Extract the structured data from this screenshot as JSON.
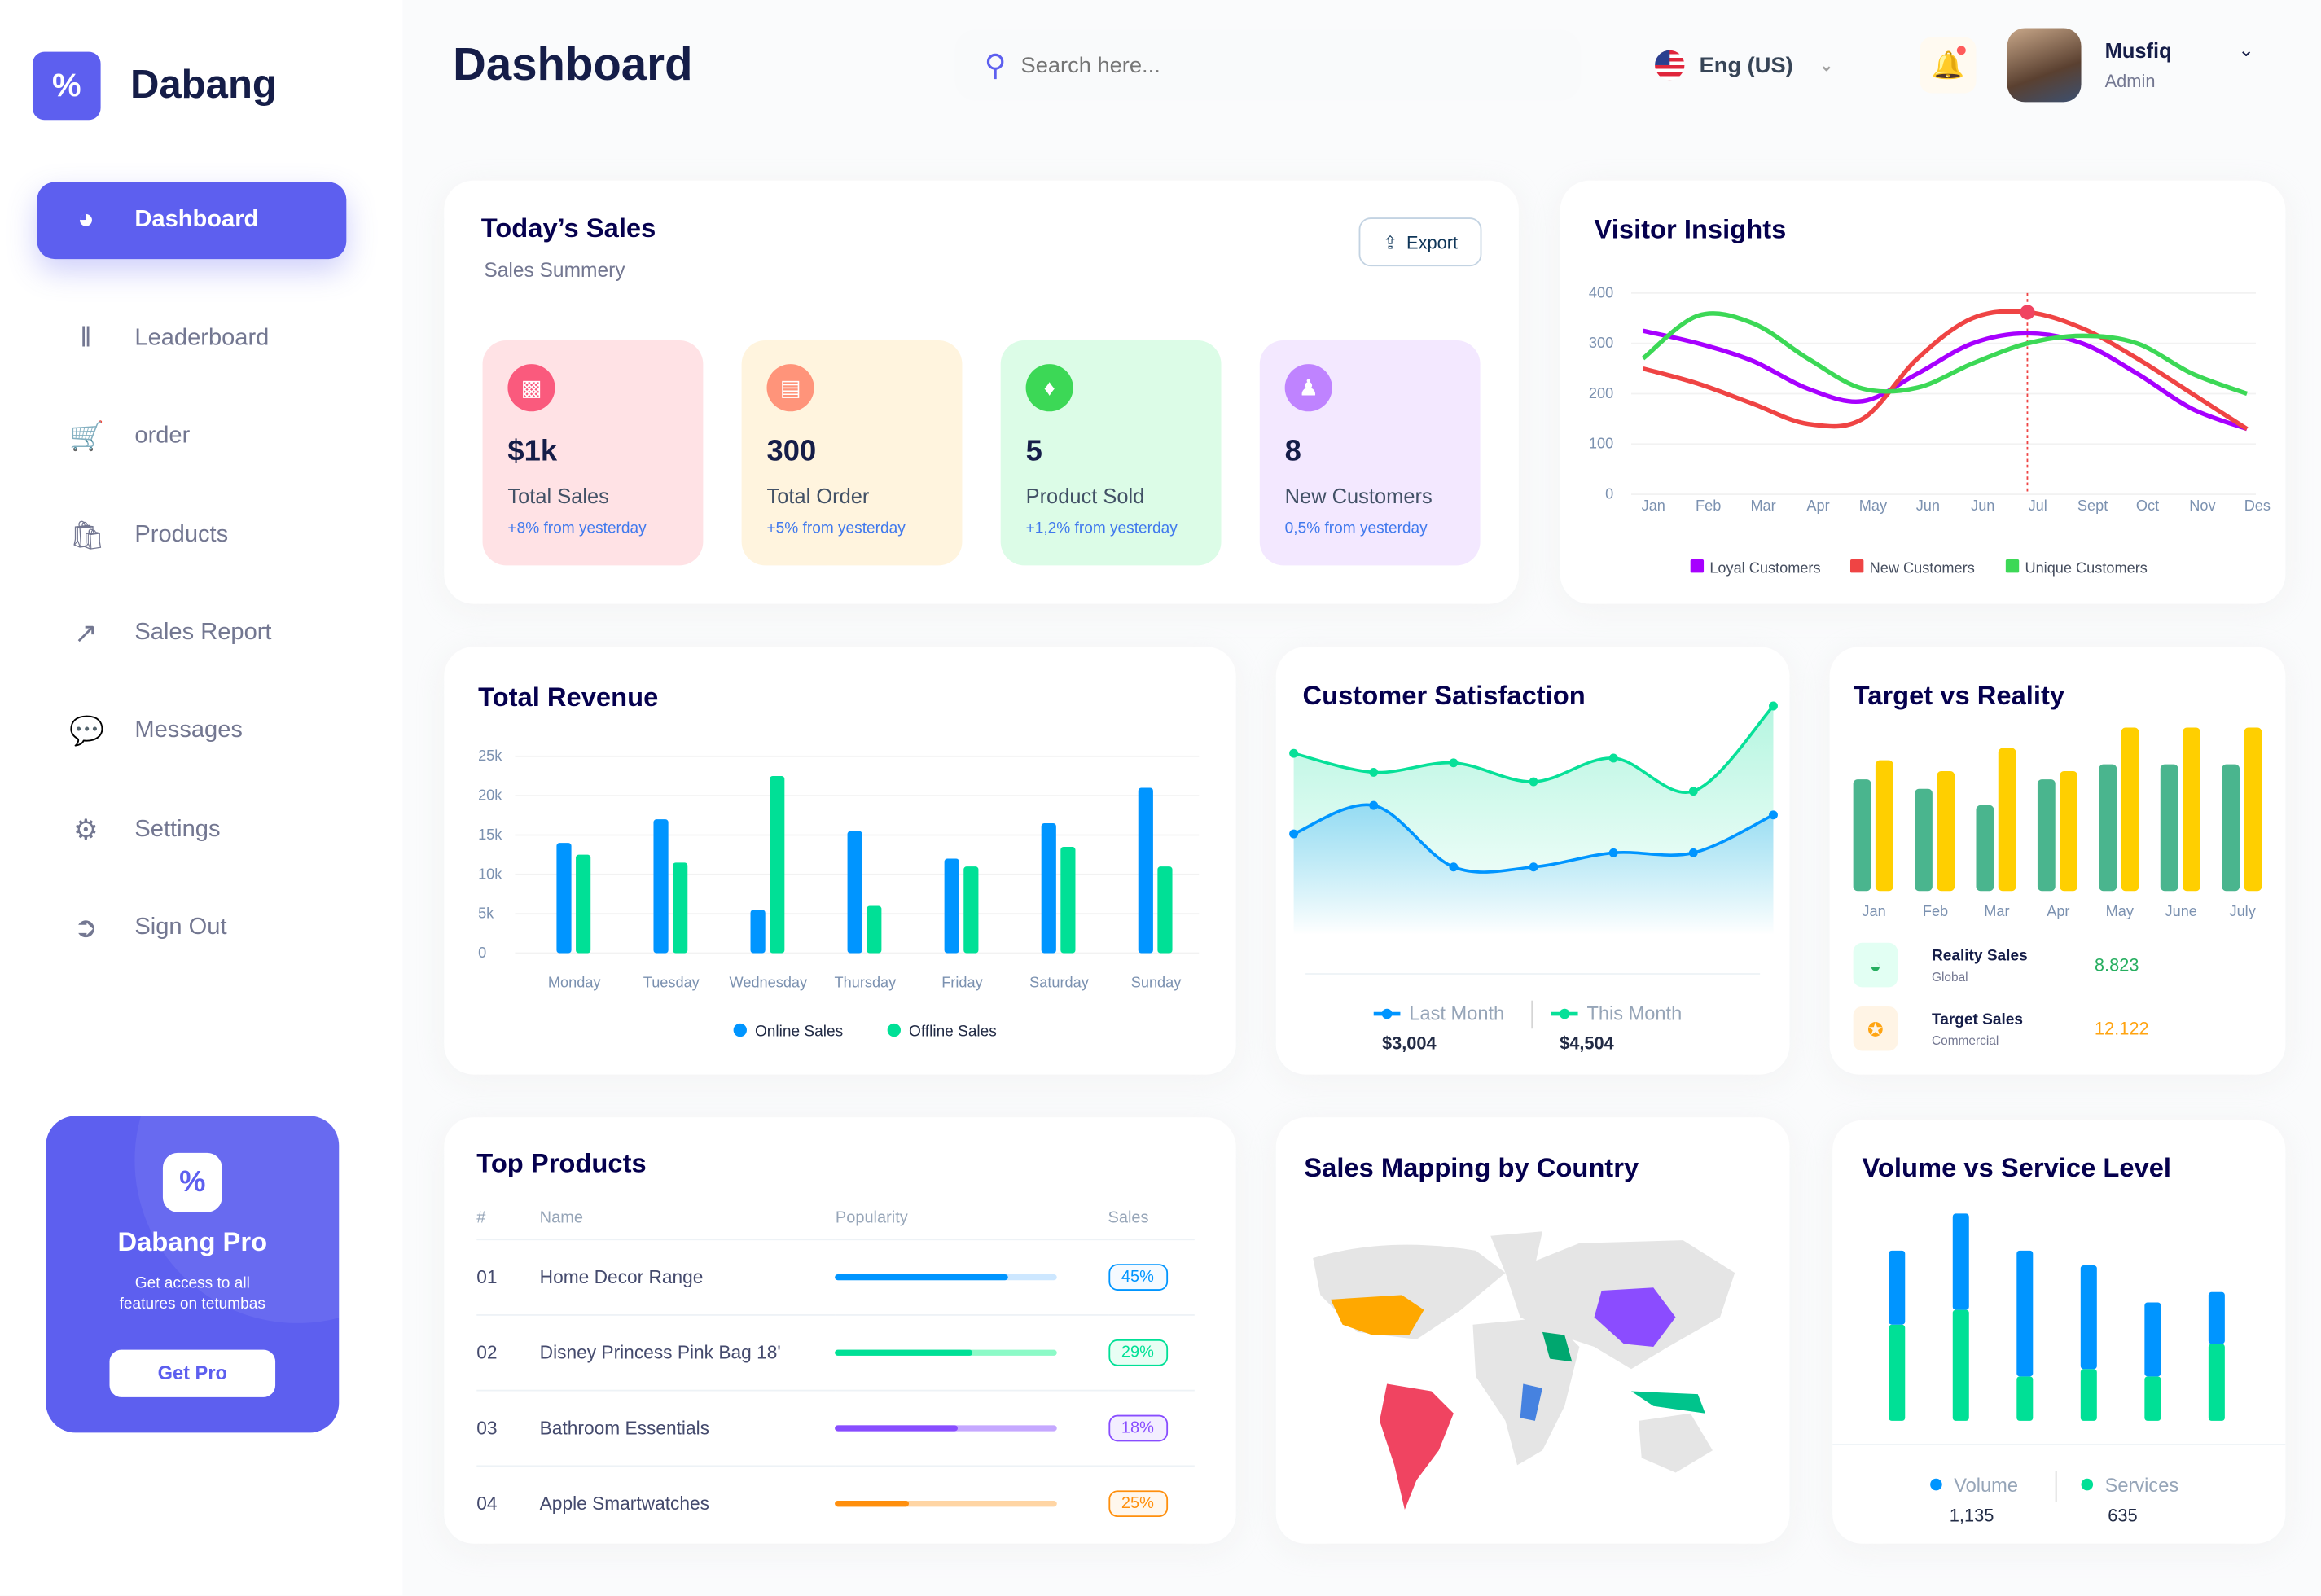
{
  "app": {
    "brand": "Dabang",
    "page_title": "Dashboard",
    "accent": "#5d5fef"
  },
  "search": {
    "placeholder": "Search here..."
  },
  "language": {
    "label": "Eng (US)"
  },
  "user": {
    "name": "Musfiq",
    "role": "Admin"
  },
  "sidebar": {
    "items": [
      {
        "label": "Dashboard",
        "icon": "pie-chart-icon",
        "active": true
      },
      {
        "label": "Leaderboard",
        "icon": "bar-chart-icon"
      },
      {
        "label": "order",
        "icon": "cart-icon"
      },
      {
        "label": "Products",
        "icon": "shopping-bag-icon"
      },
      {
        "label": "Sales Report",
        "icon": "line-chart-icon"
      },
      {
        "label": "Messages",
        "icon": "message-icon"
      },
      {
        "label": "Settings",
        "icon": "gear-icon"
      },
      {
        "label": "Sign Out",
        "icon": "sign-out-icon"
      }
    ]
  },
  "pro": {
    "title": "Dabang Pro",
    "text": "Get access to all features on tetumbas",
    "button": "Get Pro"
  },
  "todays_sales": {
    "title": "Today’s Sales",
    "subtitle": "Sales Summery",
    "export": "Export",
    "stats": [
      {
        "value": "$1k",
        "label": "Total Sales",
        "change": "+8% from yesterday",
        "bg": "#ffe2e5",
        "icon_bg": "#fa5a7d",
        "icon": "chart-icon"
      },
      {
        "value": "300",
        "label": "Total Order",
        "change": "+5% from yesterday",
        "bg": "#fff4de",
        "icon_bg": "#ff947a",
        "icon": "document-icon"
      },
      {
        "value": "5",
        "label": "Product Sold",
        "change": "+1,2% from yesterday",
        "bg": "#dcfce7",
        "icon_bg": "#3cd856",
        "icon": "tag-icon"
      },
      {
        "value": "8",
        "label": "New Customers",
        "change": "0,5% from yesterday",
        "bg": "#f3e8ff",
        "icon_bg": "#bf83ff",
        "icon": "user-add-icon"
      }
    ]
  },
  "chart_data": [
    {
      "id": "visitor",
      "type": "line",
      "title": "Visitor Insights",
      "categories": [
        "Jan",
        "Feb",
        "Mar",
        "Apr",
        "May",
        "Jun",
        "Jun",
        "Jul",
        "Sept",
        "Oct",
        "Nov",
        "Des"
      ],
      "ylim": [
        0,
        400
      ],
      "yticks": [
        0,
        100,
        200,
        300,
        400
      ],
      "highlight": {
        "category": "Jul",
        "series": "New Customers"
      },
      "series": [
        {
          "name": "Loyal Customers",
          "color": "#a700ff",
          "values": [
            325,
            300,
            265,
            210,
            185,
            240,
            300,
            320,
            300,
            240,
            170,
            130
          ]
        },
        {
          "name": "New Customers",
          "color": "#ef4444",
          "values": [
            250,
            220,
            180,
            140,
            150,
            270,
            350,
            362,
            330,
            270,
            200,
            130
          ]
        },
        {
          "name": "Unique Customers",
          "color": "#3cd856",
          "values": [
            270,
            355,
            340,
            270,
            210,
            212,
            260,
            300,
            315,
            300,
            240,
            200
          ]
        }
      ]
    },
    {
      "id": "revenue",
      "type": "bar",
      "title": "Total Revenue",
      "categories": [
        "Monday",
        "Tuesday",
        "Wednesday",
        "Thursday",
        "Friday",
        "Saturday",
        "Sunday"
      ],
      "ylim": [
        0,
        25000
      ],
      "yticks": [
        "0",
        "5k",
        "10k",
        "15k",
        "20k",
        "25k"
      ],
      "legend": "bottom",
      "series": [
        {
          "name": "Online Sales",
          "color": "#0095ff",
          "values": [
            14000,
            17000,
            5500,
            15500,
            12000,
            16500,
            21000
          ]
        },
        {
          "name": "Offline Sales",
          "color": "#00e096",
          "values": [
            12500,
            11500,
            22500,
            6000,
            11000,
            13500,
            11000
          ]
        }
      ]
    },
    {
      "id": "satisfaction",
      "type": "area",
      "title": "Customer Satisfaction",
      "legend": "bottom",
      "series": [
        {
          "name": "Last Month",
          "color": "#0095ff",
          "total": "$3,004",
          "values": [
            2.3,
            2.9,
            1.6,
            1.6,
            1.9,
            1.9,
            2.7
          ]
        },
        {
          "name": "This Month",
          "color": "#07e098",
          "total": "$4,504",
          "values": [
            4.0,
            3.6,
            3.8,
            3.4,
            3.9,
            3.2,
            5.0
          ]
        }
      ]
    },
    {
      "id": "target",
      "type": "bar",
      "title": "Target vs Reality",
      "categories": [
        "Jan",
        "Feb",
        "Mar",
        "Apr",
        "May",
        "June",
        "July"
      ],
      "series": [
        {
          "name": "Reality Sales",
          "color": "#4ab58e",
          "values": [
            8.2,
            7.5,
            6.3,
            8.2,
            9.3,
            9.3,
            9.3
          ]
        },
        {
          "name": "Target Sales",
          "color": "#ffcf00",
          "values": [
            9.6,
            8.8,
            10.5,
            8.8,
            12,
            12,
            12
          ]
        }
      ],
      "summary": [
        {
          "label": "Reality Sales",
          "sub": "Global",
          "value": "8.823",
          "color": "#27ae60",
          "icon": "bag-icon"
        },
        {
          "label": "Target Sales",
          "sub": "Commercial",
          "value": "12.122",
          "color": "#ffa412",
          "icon": "ticket-icon"
        }
      ]
    },
    {
      "id": "volume",
      "type": "stacked-bar",
      "title": "Volume vs Service Level",
      "legend": "bottom",
      "series": [
        {
          "name": "Volume",
          "color": "#0095ff",
          "total": "1,135",
          "values": [
            50,
            65,
            85,
            70,
            50,
            35
          ]
        },
        {
          "name": "Services",
          "color": "#00e096",
          "total": "635",
          "values": [
            65,
            75,
            30,
            35,
            30,
            52
          ]
        }
      ]
    }
  ],
  "top_products": {
    "title": "Top Products",
    "columns": [
      "#",
      "Name",
      "Popularity",
      "Sales"
    ],
    "rows": [
      {
        "num": "01",
        "name": "Home Decor Range",
        "popularity": 78,
        "sales": "45%",
        "color": "#0095ff",
        "light": "#cde7ff"
      },
      {
        "num": "02",
        "name": "Disney Princess Pink Bag 18'",
        "popularity": 62,
        "sales": "29%",
        "color": "#00e096",
        "light": "#8cfac7"
      },
      {
        "num": "03",
        "name": "Bathroom Essentials",
        "popularity": 55,
        "sales": "18%",
        "color": "#884dff",
        "light": "#c5a8ff"
      },
      {
        "num": "04",
        "name": "Apple Smartwatches",
        "popularity": 33,
        "sales": "25%",
        "color": "#ff8f0d",
        "light": "#ffd5a4"
      }
    ]
  },
  "map": {
    "title": "Sales Mapping by Country"
  }
}
